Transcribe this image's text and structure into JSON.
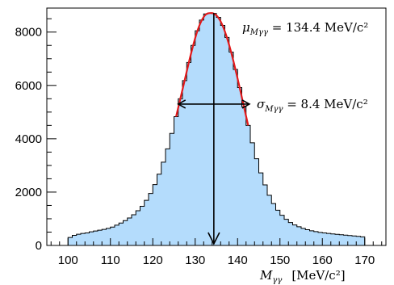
{
  "chart_data": {
    "type": "histogram",
    "x": [
      100,
      101,
      102,
      103,
      104,
      105,
      106,
      107,
      108,
      109,
      110,
      111,
      112,
      113,
      114,
      115,
      116,
      117,
      118,
      119,
      120,
      121,
      122,
      123,
      124,
      125,
      126,
      127,
      128,
      129,
      130,
      131,
      132,
      133,
      134,
      135,
      136,
      137,
      138,
      139,
      140,
      141,
      142,
      143,
      144,
      145,
      146,
      147,
      148,
      149,
      150,
      151,
      152,
      153,
      154,
      155,
      156,
      157,
      158,
      159,
      160,
      161,
      162,
      163,
      164,
      165,
      166,
      167,
      168,
      169,
      170
    ],
    "values": [
      300,
      380,
      420,
      450,
      470,
      510,
      540,
      570,
      600,
      640,
      690,
      760,
      840,
      930,
      1030,
      1150,
      1300,
      1470,
      1690,
      1950,
      2280,
      2670,
      3120,
      3620,
      4200,
      4830,
      5500,
      6180,
      6860,
      7500,
      8050,
      8450,
      8680,
      8720,
      8700,
      8550,
      8250,
      7800,
      7250,
      6600,
      5920,
      5200,
      4500,
      3850,
      3250,
      2720,
      2270,
      1880,
      1570,
      1320,
      1130,
      980,
      860,
      770,
      700,
      640,
      590,
      550,
      520,
      490,
      470,
      450,
      430,
      415,
      400,
      385,
      370,
      355,
      340,
      320,
      300
    ],
    "fit": {
      "color": "#e31a1c",
      "x_range": [
        125,
        143
      ]
    },
    "fill_color": "#b4dcfc",
    "mean_arrow_x": 134.4,
    "sigma_arrow": {
      "x_range": [
        126,
        142.8
      ],
      "y": 5300
    },
    "xlim": [
      95,
      175
    ],
    "ylim": [
      0,
      8900
    ],
    "x_ticks": [
      100,
      110,
      120,
      130,
      140,
      150,
      160,
      170
    ],
    "y_ticks": [
      0,
      2000,
      4000,
      6000,
      8000
    ],
    "annotations": {
      "mu_symbol": "μ",
      "mu_sub": "Mγγ",
      "mu_value": " = 134.4 MeV/c²",
      "sigma_symbol": "σ",
      "sigma_sub": "Mγγ",
      "sigma_value": " = 8.4 MeV/c²"
    },
    "xlabel": {
      "symbol": "M",
      "sub": "γγ",
      "unit": "[MeV/c²]"
    }
  }
}
